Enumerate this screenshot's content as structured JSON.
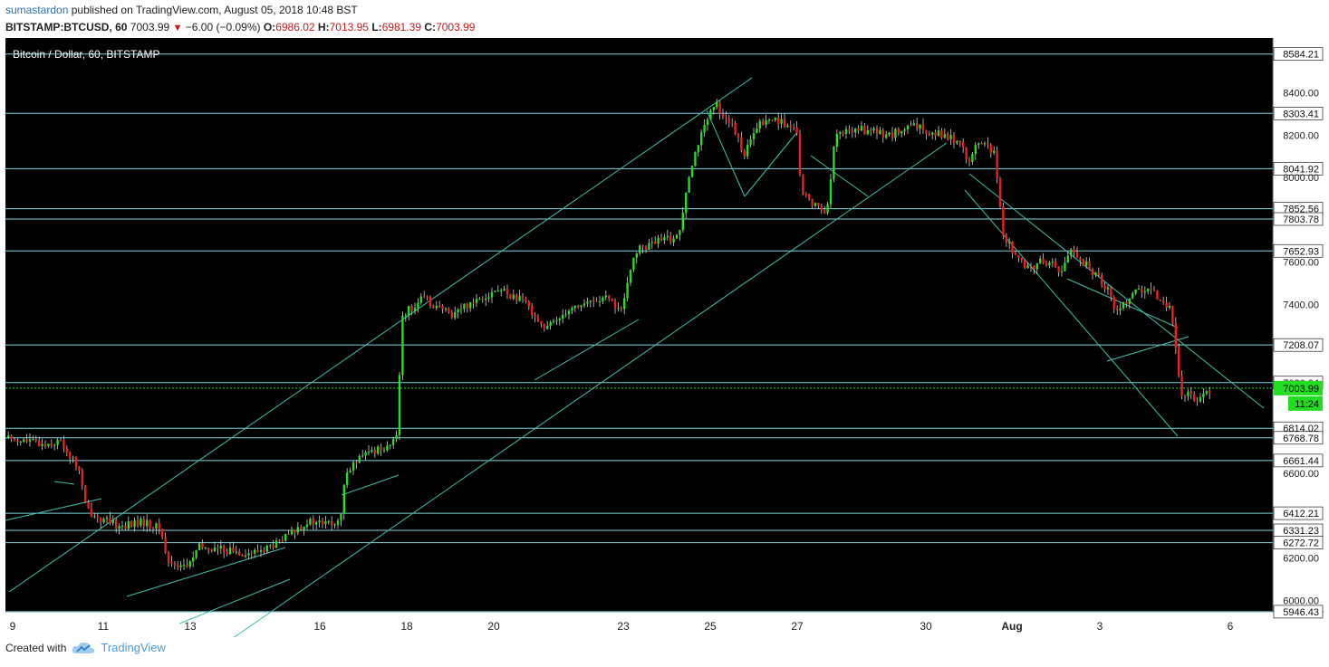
{
  "header": {
    "author": "sumastardon",
    "published": "published on TradingView.com, August 05, 2018 10:48 BST",
    "symbol": "BITSTAMP:BTCUSD, 60",
    "last": "7003.99",
    "change": "−6.00 (−0.09%)",
    "o_label": "O:",
    "o_val": "6986.02",
    "h_label": "H:",
    "h_val": "7013.95",
    "l_label": "L:",
    "l_val": "6981.39",
    "c_label": "C:",
    "c_val": "7003.99"
  },
  "footer": {
    "created_with": "Created with",
    "brand": "TradingView"
  },
  "chart_data": {
    "type": "candlestick",
    "title": "Bitcoin / Dollar, 60, BITSTAMP",
    "ylim": [
      5946,
      8660
    ],
    "y_ticks": [
      6000,
      6200,
      6400,
      6600,
      6800,
      7000,
      7200,
      7400,
      7600,
      7800,
      8000,
      8200,
      8400
    ],
    "x_ticks": [
      "9",
      "11",
      "13",
      "16",
      "18",
      "20",
      "23",
      "25",
      "27",
      "30",
      "Aug",
      "3",
      "6"
    ],
    "levels": [
      8584.21,
      8303.41,
      8041.92,
      7852.56,
      7803.78,
      7652.93,
      7208.07,
      7030.04,
      6814.02,
      6768.78,
      6661.44,
      6412.21,
      6331.23,
      6272.72,
      5946.43
    ],
    "last_price": 7003.99,
    "countdown": "11:24",
    "path": [
      [
        0,
        6770
      ],
      [
        40,
        6740
      ],
      [
        60,
        6750
      ],
      [
        75,
        6650
      ],
      [
        80,
        6620
      ],
      [
        88,
        6430
      ],
      [
        105,
        6380
      ],
      [
        125,
        6350
      ],
      [
        150,
        6370
      ],
      [
        170,
        6340
      ],
      [
        178,
        6180
      ],
      [
        200,
        6160
      ],
      [
        212,
        6250
      ],
      [
        240,
        6240
      ],
      [
        270,
        6220
      ],
      [
        300,
        6270
      ],
      [
        330,
        6370
      ],
      [
        368,
        6360
      ],
      [
        375,
        6620
      ],
      [
        400,
        6700
      ],
      [
        430,
        6750
      ],
      [
        437,
        7350
      ],
      [
        460,
        7430
      ],
      [
        490,
        7350
      ],
      [
        520,
        7430
      ],
      [
        545,
        7470
      ],
      [
        575,
        7400
      ],
      [
        595,
        7280
      ],
      [
        620,
        7380
      ],
      [
        660,
        7430
      ],
      [
        680,
        7370
      ],
      [
        693,
        7650
      ],
      [
        720,
        7700
      ],
      [
        742,
        7720
      ],
      [
        752,
        8000
      ],
      [
        762,
        8150
      ],
      [
        782,
        8350
      ],
      [
        800,
        8250
      ],
      [
        815,
        8110
      ],
      [
        830,
        8250
      ],
      [
        850,
        8280
      ],
      [
        872,
        8210
      ],
      [
        878,
        7920
      ],
      [
        905,
        7830
      ],
      [
        915,
        8200
      ],
      [
        940,
        8230
      ],
      [
        975,
        8200
      ],
      [
        1000,
        8240
      ],
      [
        1030,
        8210
      ],
      [
        1055,
        8160
      ],
      [
        1062,
        8070
      ],
      [
        1075,
        8180
      ],
      [
        1090,
        8110
      ],
      [
        1100,
        7730
      ],
      [
        1125,
        7560
      ],
      [
        1145,
        7610
      ],
      [
        1165,
        7560
      ],
      [
        1175,
        7660
      ],
      [
        1195,
        7570
      ],
      [
        1215,
        7480
      ],
      [
        1225,
        7360
      ],
      [
        1245,
        7470
      ],
      [
        1265,
        7450
      ],
      [
        1285,
        7390
      ],
      [
        1290,
        7200
      ],
      [
        1296,
        6980
      ],
      [
        1315,
        6960
      ],
      [
        1330,
        7003.99
      ]
    ],
    "trendlines": [
      [
        [
          10,
          612
        ],
        [
          830,
          44
        ]
      ],
      [
        [
          240,
          675
        ],
        [
          1045,
          116
        ]
      ],
      [
        [
          6,
          533
        ],
        [
          112,
          509
        ]
      ],
      [
        [
          60,
          490
        ],
        [
          82,
          493
        ]
      ],
      [
        [
          140,
          617
        ],
        [
          315,
          563
        ]
      ],
      [
        [
          198,
          647
        ],
        [
          320,
          598
        ]
      ],
      [
        [
          377,
          505
        ],
        [
          440,
          483
        ]
      ],
      [
        [
          590,
          378
        ],
        [
          705,
          311
        ]
      ],
      [
        [
          780,
          80
        ],
        [
          822,
          175
        ]
      ],
      [
        [
          822,
          175
        ],
        [
          880,
          104
        ]
      ],
      [
        [
          895,
          130
        ],
        [
          958,
          175
        ]
      ],
      [
        [
          1070,
          150
        ],
        [
          1395,
          409
        ]
      ],
      [
        [
          1065,
          168
        ],
        [
          1300,
          440
        ]
      ],
      [
        [
          1222,
          357
        ],
        [
          1312,
          330
        ]
      ],
      [
        [
          1178,
          266
        ],
        [
          1300,
          320
        ]
      ]
    ]
  }
}
